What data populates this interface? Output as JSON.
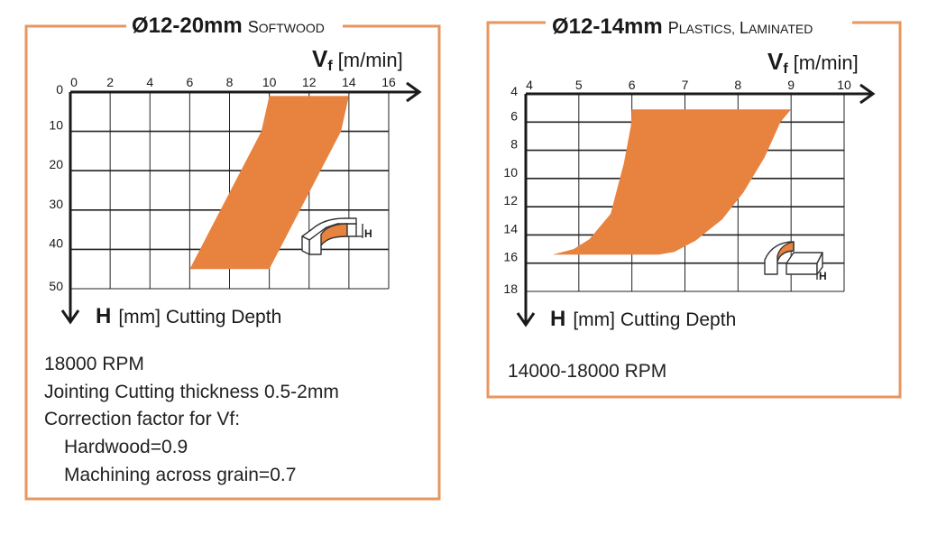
{
  "colors": {
    "accent": "#e8823f",
    "frame": "#e89660",
    "grid": "#222222"
  },
  "chart_data": [
    {
      "type": "area",
      "title_size": "Ø12-20mm",
      "title_material": "Softwood",
      "x_axis_label": "V",
      "x_axis_sub": "f",
      "x_axis_unit": "[m/min]",
      "x_ticks": [
        "0",
        "2",
        "4",
        "6",
        "8",
        "10",
        "12",
        "14",
        "16"
      ],
      "xlim": [
        0,
        16
      ],
      "y_axis_label": "H",
      "y_axis_rest": "[mm] Cutting Depth",
      "y_ticks": [
        "0",
        "10",
        "20",
        "30",
        "40",
        "50"
      ],
      "ylim": [
        0,
        50
      ],
      "grid": true,
      "region": [
        [
          10,
          1
        ],
        [
          14,
          1
        ],
        [
          13.6,
          10
        ],
        [
          10,
          45
        ],
        [
          6,
          45
        ],
        [
          9.6,
          10
        ]
      ],
      "icon_label": "H",
      "notes": [
        "18000 RPM",
        "Jointing Cutting thickness 0.5-2mm",
        "Correction factor for Vf:",
        "Hardwood=0.9",
        "Machining across grain=0.7"
      ]
    },
    {
      "type": "area",
      "title_size": "Ø12-14mm",
      "title_material": "Plastics, laminated",
      "x_axis_label": "V",
      "x_axis_sub": "f",
      "x_axis_unit": "[m/min]",
      "x_ticks": [
        "4",
        "5",
        "6",
        "7",
        "8",
        "9",
        "10"
      ],
      "xlim": [
        4,
        10
      ],
      "y_axis_label": "H",
      "y_axis_rest": "[mm] Cutting Depth",
      "y_ticks": [
        "4",
        "6",
        "8",
        "10",
        "12",
        "14",
        "16",
        "18"
      ],
      "ylim": [
        4,
        18
      ],
      "grid": true,
      "region": [
        [
          6,
          5.1
        ],
        [
          9,
          5.1
        ],
        [
          8.8,
          6
        ],
        [
          8.5,
          8.5
        ],
        [
          8.1,
          11
        ],
        [
          7.7,
          12.9
        ],
        [
          7.2,
          14.4
        ],
        [
          6.8,
          15.2
        ],
        [
          6.5,
          15.4
        ],
        [
          5.2,
          15.4
        ],
        [
          4.5,
          15.4
        ],
        [
          4.6,
          15.3
        ],
        [
          4.9,
          15
        ],
        [
          5.2,
          14.3
        ],
        [
          5.6,
          12.5
        ],
        [
          5.85,
          8.9
        ],
        [
          5.98,
          6.3
        ]
      ],
      "icon_label": "H",
      "notes": [
        "14000-18000 RPM"
      ]
    }
  ]
}
